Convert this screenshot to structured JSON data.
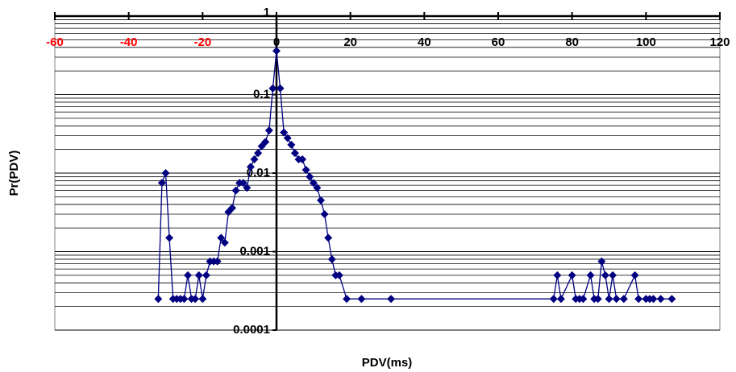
{
  "chart_data": {
    "type": "line",
    "x_label": "PDV(ms)",
    "y_label": "Pr(PDV)",
    "log_y": true,
    "grid": true,
    "negative_tick_color": "#ff0000",
    "xlim": [
      -60,
      120
    ],
    "xticks": [
      -60,
      -40,
      -20,
      0,
      20,
      40,
      60,
      80,
      100,
      120
    ],
    "ylim": [
      0.0001,
      1
    ],
    "yticks": [
      0.0001,
      0.001,
      0.01,
      0.1,
      1
    ],
    "series": [
      {
        "color": "#000080",
        "x": [
          -32,
          -31,
          -30,
          -29,
          -28,
          -27,
          -26,
          -25,
          -24,
          -23,
          -22,
          -21,
          -20,
          -19,
          -18,
          -17,
          -16,
          -15,
          -14,
          -13,
          -12,
          -11,
          -10,
          -9,
          -8,
          -7,
          -6,
          -5,
          -4,
          -3,
          -2,
          -1,
          0,
          1,
          2,
          3,
          4,
          5,
          6,
          7,
          8,
          9,
          10,
          11,
          12,
          13,
          14,
          15,
          16,
          17,
          19,
          23,
          31,
          75,
          76,
          77,
          80,
          81,
          82,
          83,
          85,
          86,
          87,
          88,
          89,
          90,
          91,
          92,
          94,
          97,
          98,
          100,
          101,
          102,
          104,
          107
        ],
        "values": [
          0.00025,
          0.0075,
          0.01,
          0.0015,
          0.00025,
          0.00025,
          0.00025,
          0.00025,
          0.0005,
          0.00025,
          0.00025,
          0.0005,
          0.00025,
          0.0005,
          0.00075,
          0.00075,
          0.00075,
          0.0015,
          0.0013,
          0.0032,
          0.0036,
          0.006,
          0.0075,
          0.0075,
          0.0065,
          0.012,
          0.015,
          0.018,
          0.022,
          0.025,
          0.035,
          0.12,
          0.36,
          0.12,
          0.033,
          0.028,
          0.023,
          0.018,
          0.015,
          0.015,
          0.011,
          0.009,
          0.0075,
          0.0065,
          0.0045,
          0.003,
          0.0015,
          0.0008,
          0.0005,
          0.0005,
          0.00025,
          0.00025,
          0.00025,
          0.00025,
          0.0005,
          0.00025,
          0.0005,
          0.00025,
          0.00025,
          0.00025,
          0.0005,
          0.00025,
          0.00025,
          0.00075,
          0.0005,
          0.00025,
          0.0005,
          0.00025,
          0.00025,
          0.0005,
          0.00025,
          0.00025,
          0.00025,
          0.00025,
          0.00025,
          0.00025
        ]
      }
    ]
  }
}
